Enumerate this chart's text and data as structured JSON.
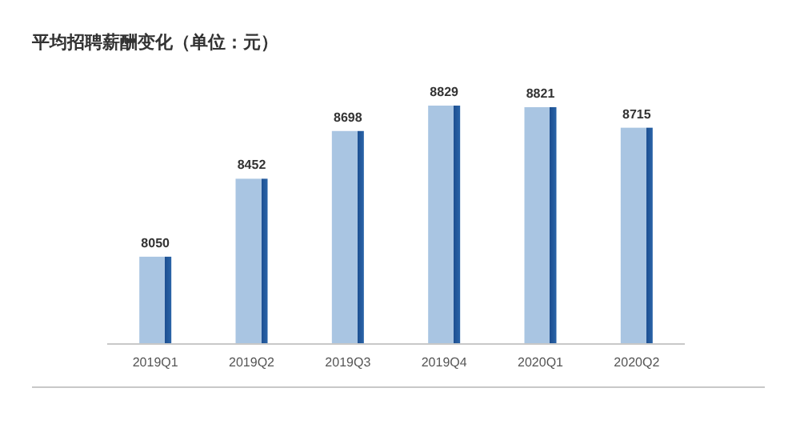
{
  "chart_data": {
    "type": "bar",
    "title": "平均招聘薪酬变化（单位：元）",
    "categories": [
      "2019Q1",
      "2019Q2",
      "2019Q3",
      "2019Q4",
      "2020Q1",
      "2020Q2"
    ],
    "values": [
      8050,
      8452,
      8698,
      8829,
      8821,
      8715
    ],
    "color": "#a9c5e2",
    "ylim": [
      7600,
      8829
    ],
    "data_labels": true
  }
}
